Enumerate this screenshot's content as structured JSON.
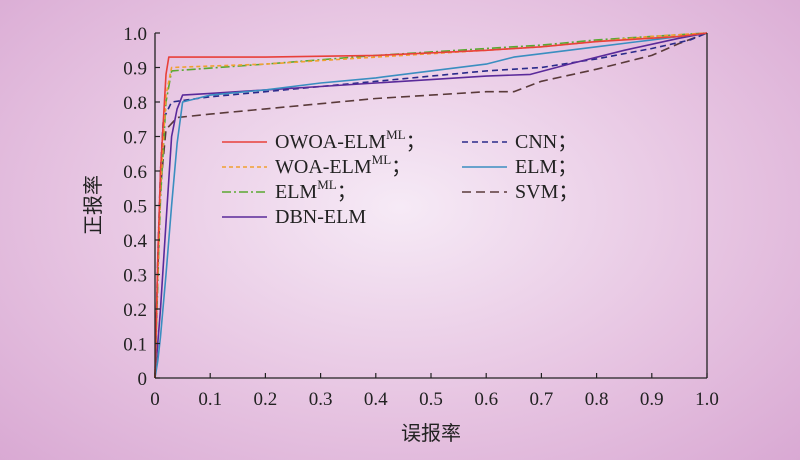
{
  "chart_data": {
    "type": "line",
    "xlabel": "误报率",
    "ylabel": "正报率",
    "xlim": [
      0,
      1
    ],
    "ylim": [
      0,
      1
    ],
    "xticks": [
      "0",
      "0.1",
      "0.2",
      "0.3",
      "0.4",
      "0.5",
      "0.6",
      "0.7",
      "0.8",
      "0.9",
      "1.0"
    ],
    "yticks": [
      "0",
      "0.1",
      "0.2",
      "0.3",
      "0.4",
      "0.5",
      "0.6",
      "0.7",
      "0.8",
      "0.9",
      "1.0"
    ],
    "grid": false,
    "legend_position": "center-left, two columns",
    "series": [
      {
        "name": "OWOA-ELM",
        "name_sup": "ML",
        "suffix": "；",
        "color": "#e8403a",
        "dash": "solid",
        "x": [
          0,
          0.005,
          0.01,
          0.02,
          0.025,
          0.2,
          0.4,
          0.6,
          0.7,
          0.8,
          0.9,
          0.95,
          1.0
        ],
        "y": [
          0,
          0.35,
          0.6,
          0.88,
          0.93,
          0.93,
          0.935,
          0.95,
          0.96,
          0.975,
          0.985,
          0.99,
          1.0
        ]
      },
      {
        "name": "WOA-ELM",
        "name_sup": "ML",
        "suffix": "；",
        "color": "#f0a030",
        "dash": "4,3",
        "x": [
          0,
          0.005,
          0.01,
          0.02,
          0.03,
          0.2,
          0.4,
          0.6,
          0.7,
          0.8,
          0.9,
          1.0
        ],
        "y": [
          0,
          0.3,
          0.55,
          0.82,
          0.9,
          0.91,
          0.93,
          0.95,
          0.96,
          0.975,
          0.99,
          1.0
        ]
      },
      {
        "name": "ELM",
        "name_sup": "ML",
        "suffix": "；",
        "color": "#5aa832",
        "dash": "9,3,2,3",
        "x": [
          0,
          0.005,
          0.01,
          0.02,
          0.03,
          0.2,
          0.4,
          0.6,
          0.7,
          0.8,
          0.9,
          1.0
        ],
        "y": [
          0,
          0.28,
          0.52,
          0.8,
          0.89,
          0.91,
          0.935,
          0.955,
          0.965,
          0.98,
          0.99,
          1.0
        ]
      },
      {
        "name": "DBN-ELM",
        "name_sup": "",
        "suffix": "",
        "color": "#5a2a9a",
        "dash": "solid",
        "x": [
          0,
          0.01,
          0.02,
          0.03,
          0.04,
          0.05,
          0.1,
          0.2,
          0.3,
          0.4,
          0.5,
          0.6,
          0.68,
          0.75,
          0.85,
          0.95,
          1.0
        ],
        "y": [
          0,
          0.2,
          0.45,
          0.7,
          0.78,
          0.82,
          0.825,
          0.835,
          0.845,
          0.855,
          0.865,
          0.875,
          0.88,
          0.91,
          0.95,
          0.985,
          1.0
        ]
      },
      {
        "name": "CNN",
        "name_sup": "",
        "suffix": "；",
        "color": "#2a2a8a",
        "dash": "6,4",
        "x": [
          0,
          0.005,
          0.01,
          0.015,
          0.03,
          0.1,
          0.2,
          0.3,
          0.4,
          0.5,
          0.6,
          0.7,
          0.8,
          0.9,
          0.97,
          1.0
        ],
        "y": [
          0,
          0.35,
          0.6,
          0.75,
          0.8,
          0.815,
          0.83,
          0.845,
          0.86,
          0.875,
          0.89,
          0.9,
          0.925,
          0.955,
          0.98,
          1.0
        ]
      },
      {
        "name": "ELM",
        "name_sup": "",
        "suffix": "；",
        "color": "#3a8ec0",
        "dash": "solid",
        "x": [
          0,
          0.005,
          0.01,
          0.02,
          0.03,
          0.04,
          0.05,
          0.1,
          0.2,
          0.3,
          0.4,
          0.5,
          0.6,
          0.65,
          0.7,
          0.8,
          0.9,
          1.0
        ],
        "y": [
          0,
          0.05,
          0.12,
          0.3,
          0.5,
          0.68,
          0.8,
          0.82,
          0.835,
          0.855,
          0.87,
          0.89,
          0.91,
          0.93,
          0.94,
          0.96,
          0.98,
          1.0
        ]
      },
      {
        "name": "SVM",
        "name_sup": "",
        "suffix": "；",
        "color": "#5a3a3a",
        "dash": "9,5",
        "x": [
          0,
          0.005,
          0.01,
          0.02,
          0.04,
          0.1,
          0.2,
          0.3,
          0.4,
          0.5,
          0.6,
          0.65,
          0.7,
          0.8,
          0.9,
          0.95,
          1.0
        ],
        "y": [
          0,
          0.3,
          0.55,
          0.72,
          0.755,
          0.765,
          0.78,
          0.795,
          0.81,
          0.82,
          0.83,
          0.83,
          0.86,
          0.895,
          0.935,
          0.97,
          1.0
        ]
      }
    ]
  }
}
